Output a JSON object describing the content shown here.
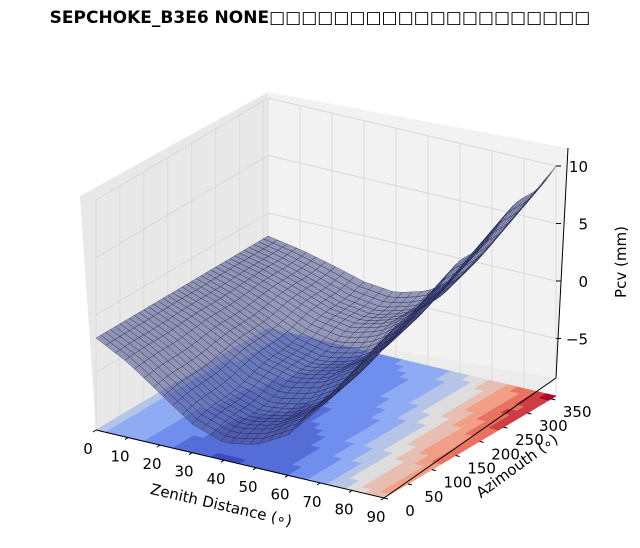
{
  "chart_data": {
    "type": "surface3d",
    "title": "SEPCHOKE_B3E6   NONE□□□□□□□□□□□□□□□□□□□□",
    "xlabel": "Zenith Distance (∘)",
    "ylabel": "Azimouth (∘)",
    "zlabel": "Pcv (mm)",
    "xlim": [
      0,
      90
    ],
    "ylim": [
      0,
      360
    ],
    "zlim": [
      -10,
      10
    ],
    "x_ticks": [
      "0",
      "10",
      "20",
      "30",
      "40",
      "50",
      "60",
      "70",
      "80",
      "90"
    ],
    "y_ticks": [
      "0",
      "50",
      "100",
      "150",
      "200",
      "250",
      "300",
      "350"
    ],
    "z_ticks": [
      "−5",
      "0",
      "5",
      "10"
    ],
    "z_tick_values": [
      -5,
      0,
      5,
      10
    ],
    "zenith": [
      0,
      10,
      20,
      30,
      40,
      50,
      60,
      70,
      80,
      90
    ],
    "pcv_at_azimuth_0": [
      -2.0,
      -3.5,
      -5.5,
      -7.5,
      -8.5,
      -8.0,
      -6.5,
      -3.5,
      0.0,
      3.5
    ],
    "pcv_at_azimuth_360": [
      -2.0,
      -2.5,
      -3.2,
      -4.0,
      -4.3,
      -3.5,
      -1.5,
      2.0,
      6.0,
      10.0
    ],
    "surface_color": "#4b4f8c",
    "contour_colormap": "coolwarm",
    "grid": true
  }
}
